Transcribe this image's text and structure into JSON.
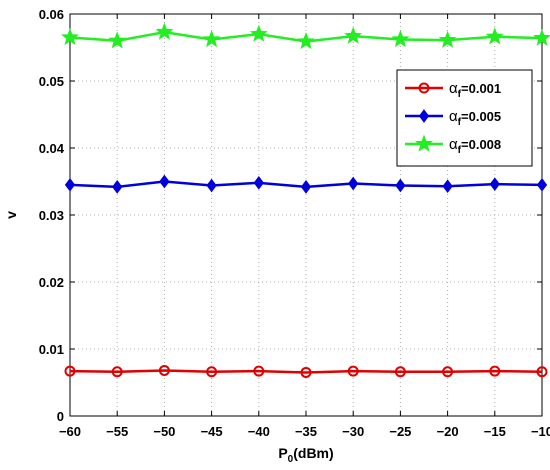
{
  "chart_data": {
    "type": "line",
    "x": [
      -60,
      -55,
      -50,
      -45,
      -40,
      -35,
      -30,
      -25,
      -20,
      -15,
      -10
    ],
    "xticks": [
      "-60",
      "-55",
      "-50",
      "-45",
      "-40",
      "-35",
      "-30",
      "-25",
      "-20",
      "-15",
      "-10"
    ],
    "yticks": [
      "0",
      "0.01",
      "0.02",
      "0.03",
      "0.04",
      "0.05",
      "0.06"
    ],
    "xlim": [
      -60,
      -10
    ],
    "ylim": [
      0,
      0.06
    ],
    "xlabel_main": "P",
    "xlabel_sub": "0",
    "xlabel_rest": "(dBm)",
    "ylabel": "v",
    "grid": true,
    "legend_position": "upper-right",
    "series": [
      {
        "name_main": "α",
        "name_sub": "f",
        "name_rest": "=0.001",
        "color": "#e00000",
        "marker": "circle",
        "values": [
          0.0067,
          0.0066,
          0.0068,
          0.0066,
          0.0067,
          0.0065,
          0.0067,
          0.0066,
          0.0066,
          0.0067,
          0.0066
        ]
      },
      {
        "name_main": "α",
        "name_sub": "f",
        "name_rest": "=0.005",
        "color": "#0000dd",
        "marker": "diamond",
        "values": [
          0.0345,
          0.0342,
          0.035,
          0.0344,
          0.0348,
          0.0342,
          0.0347,
          0.0344,
          0.0343,
          0.0346,
          0.0345
        ]
      },
      {
        "name_main": "α",
        "name_sub": "f",
        "name_rest": "=0.008",
        "color": "#22ee22",
        "marker": "star",
        "values": [
          0.0565,
          0.056,
          0.0573,
          0.0562,
          0.057,
          0.0559,
          0.0567,
          0.0562,
          0.0561,
          0.0566,
          0.0564
        ]
      }
    ]
  }
}
